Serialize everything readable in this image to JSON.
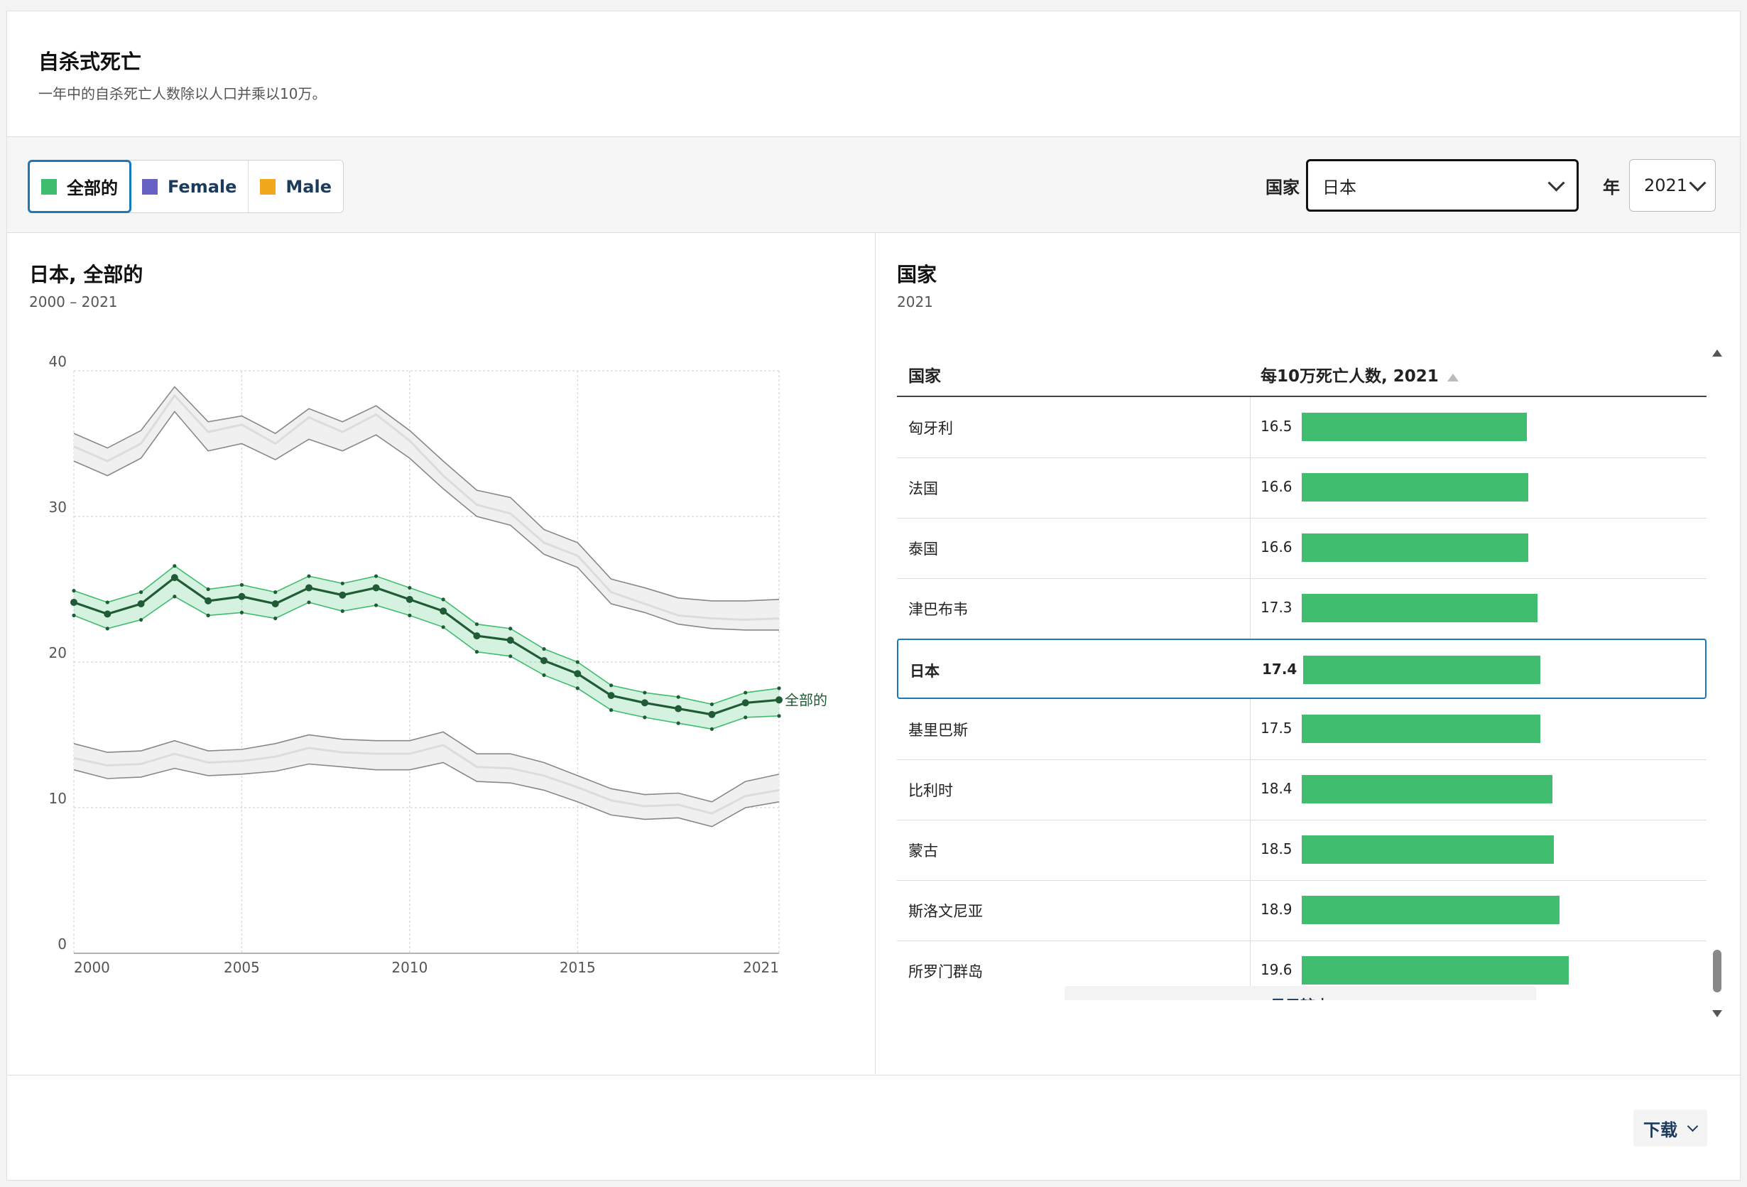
{
  "header": {
    "title": "自杀式死亡",
    "subtitle": "一年中的自杀死亡人数除以人口并乘以10万。"
  },
  "tabs": [
    {
      "label": "全部的",
      "color": "#3fbd6e",
      "active": true
    },
    {
      "label": "Female",
      "color": "#6861c4",
      "active": false
    },
    {
      "label": "Male",
      "color": "#f2a81d",
      "active": false
    }
  ],
  "controls": {
    "country_label": "国家",
    "country_value": "日本",
    "year_label": "年",
    "year_value": "2021"
  },
  "left_panel": {
    "title": "日本, 全部的",
    "subtitle": "2000 – 2021"
  },
  "right_panel": {
    "title": "国家",
    "subtitle": "2021",
    "col_country": "国家",
    "col_value": "每10万死亡人数, 2021",
    "show_less": "显示较少"
  },
  "footer": {
    "download": "下载"
  },
  "colors": {
    "accent": "#1a79b8",
    "green": "#40bd6e",
    "green_dark": "#1f5c35"
  },
  "table_rows": [
    {
      "country": "匈牙利",
      "value": 16.5
    },
    {
      "country": "法国",
      "value": 16.6
    },
    {
      "country": "泰国",
      "value": 16.6
    },
    {
      "country": "津巴布韦",
      "value": 17.3
    },
    {
      "country": "日本",
      "value": 17.4,
      "highlight": true
    },
    {
      "country": "基里巴斯",
      "value": 17.5
    },
    {
      "country": "比利时",
      "value": 18.4
    },
    {
      "country": "蒙古",
      "value": 18.5
    },
    {
      "country": "斯洛文尼亚",
      "value": 18.9
    },
    {
      "country": "所罗门群岛",
      "value": 19.6
    }
  ],
  "chart_data": {
    "type": "line",
    "title": "日本, 全部的",
    "subtitle": "2000 – 2021",
    "x": [
      2000,
      2001,
      2002,
      2003,
      2004,
      2005,
      2006,
      2007,
      2008,
      2009,
      2010,
      2011,
      2012,
      2013,
      2014,
      2015,
      2016,
      2017,
      2018,
      2019,
      2020,
      2021
    ],
    "xticks": [
      "2000",
      "2005",
      "2010",
      "2015",
      "2021"
    ],
    "xtick_values": [
      2000,
      2005,
      2010,
      2015,
      2021
    ],
    "yticks": [
      "0",
      "10",
      "20",
      "30",
      "40"
    ],
    "ylim": [
      0,
      40
    ],
    "series": [
      {
        "name": "全部的",
        "role": "main",
        "values": [
          24.1,
          23.3,
          24.0,
          25.8,
          24.2,
          24.5,
          24.0,
          25.1,
          24.6,
          25.1,
          24.3,
          23.5,
          21.8,
          21.5,
          20.1,
          19.2,
          17.7,
          17.2,
          16.8,
          16.4,
          17.2,
          17.4
        ],
        "upper": [
          24.9,
          24.1,
          24.8,
          26.6,
          25.0,
          25.3,
          24.8,
          25.9,
          25.4,
          25.9,
          25.1,
          24.3,
          22.6,
          22.3,
          20.9,
          20.0,
          18.4,
          17.9,
          17.6,
          17.1,
          17.9,
          18.2
        ],
        "lower": [
          23.2,
          22.3,
          22.9,
          24.5,
          23.2,
          23.4,
          23.0,
          24.1,
          23.5,
          23.9,
          23.2,
          22.4,
          20.7,
          20.4,
          19.1,
          18.2,
          16.7,
          16.2,
          15.8,
          15.4,
          16.2,
          16.3
        ]
      },
      {
        "role": "background",
        "values": [
          34.8,
          33.8,
          35.0,
          38.3,
          35.8,
          36.3,
          35.0,
          36.8,
          35.8,
          37.0,
          35.2,
          32.8,
          30.8,
          30.2,
          28.2,
          27.3,
          24.8,
          24.0,
          23.2,
          23.0,
          22.9,
          23.0
        ],
        "upper": [
          35.7,
          34.7,
          35.9,
          38.9,
          36.5,
          36.9,
          35.7,
          37.4,
          36.5,
          37.6,
          35.9,
          33.8,
          31.8,
          31.3,
          29.1,
          28.2,
          25.7,
          25.1,
          24.4,
          24.2,
          24.2,
          24.3
        ],
        "lower": [
          33.8,
          32.8,
          34.0,
          37.2,
          34.5,
          35.0,
          33.9,
          35.3,
          34.5,
          35.6,
          34.0,
          31.9,
          30.0,
          29.4,
          27.4,
          26.5,
          24.0,
          23.4,
          22.6,
          22.3,
          22.2,
          22.2
        ]
      },
      {
        "role": "background",
        "values": [
          13.4,
          12.9,
          13.0,
          13.7,
          13.1,
          13.2,
          13.5,
          14.1,
          13.8,
          13.7,
          13.7,
          14.3,
          12.8,
          12.7,
          12.2,
          11.4,
          10.5,
          10.1,
          10.2,
          9.6,
          10.8,
          11.2
        ],
        "upper": [
          14.4,
          13.8,
          13.9,
          14.6,
          13.9,
          14.0,
          14.4,
          15.0,
          14.7,
          14.6,
          14.6,
          15.2,
          13.7,
          13.7,
          13.1,
          12.2,
          11.3,
          10.9,
          11.0,
          10.4,
          11.8,
          12.3
        ],
        "lower": [
          12.6,
          12.0,
          12.1,
          12.7,
          12.2,
          12.3,
          12.5,
          13.0,
          12.8,
          12.6,
          12.6,
          13.1,
          11.8,
          11.7,
          11.2,
          10.4,
          9.5,
          9.2,
          9.3,
          8.7,
          10.0,
          10.4
        ]
      }
    ]
  }
}
